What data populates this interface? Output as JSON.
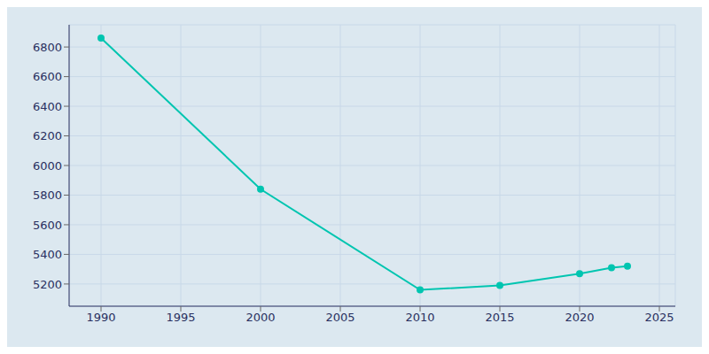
{
  "chart_data": {
    "type": "line",
    "x": [
      1990,
      2000,
      2010,
      2015,
      2020,
      2022,
      2023
    ],
    "values": [
      6860,
      5840,
      5160,
      5190,
      5270,
      5310,
      5320
    ],
    "color": "#00c5b0",
    "marker": "circle",
    "xlim": [
      1988,
      2026
    ],
    "ylim": [
      5050,
      6950
    ],
    "xticks": [
      1990,
      1995,
      2000,
      2005,
      2010,
      2015,
      2020,
      2025
    ],
    "yticks": [
      5200,
      5400,
      5600,
      5800,
      6000,
      6200,
      6400,
      6600,
      6800
    ],
    "grid": true
  }
}
